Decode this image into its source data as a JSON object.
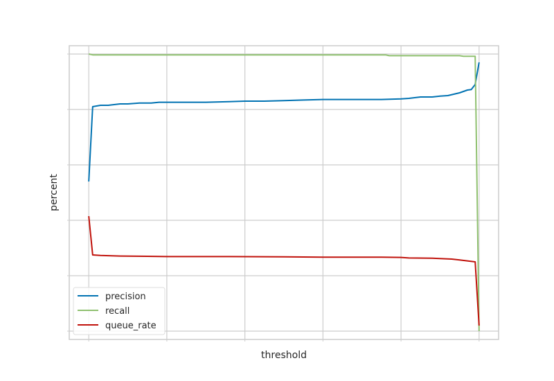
{
  "chart_data": {
    "type": "line",
    "xlabel": "threshold",
    "ylabel": "percent",
    "xlim": [
      -0.05,
      1.05
    ],
    "ylim": [
      -0.03,
      1.03
    ],
    "grid": true,
    "show_tick_labels": false,
    "legend_position": "lower-left",
    "series": [
      {
        "name": "precision",
        "color": "#0072b2",
        "x": [
          0.0,
          0.01,
          0.03,
          0.05,
          0.08,
          0.1,
          0.13,
          0.16,
          0.18,
          0.2,
          0.3,
          0.36,
          0.4,
          0.45,
          0.5,
          0.55,
          0.6,
          0.7,
          0.75,
          0.8,
          0.82,
          0.85,
          0.88,
          0.9,
          0.92,
          0.95,
          0.97,
          0.98,
          0.99,
          1.0
        ],
        "y": [
          0.54,
          0.81,
          0.815,
          0.815,
          0.82,
          0.82,
          0.823,
          0.823,
          0.826,
          0.826,
          0.826,
          0.828,
          0.83,
          0.83,
          0.832,
          0.834,
          0.836,
          0.836,
          0.836,
          0.838,
          0.84,
          0.845,
          0.845,
          0.848,
          0.85,
          0.86,
          0.87,
          0.872,
          0.89,
          0.97
        ]
      },
      {
        "name": "recall",
        "color": "#8fc06f",
        "x": [
          0.0,
          0.01,
          0.3,
          0.6,
          0.76,
          0.77,
          0.95,
          0.96,
          0.99,
          1.0
        ],
        "y": [
          1.0,
          0.997,
          0.997,
          0.997,
          0.997,
          0.994,
          0.994,
          0.992,
          0.992,
          0.0
        ]
      },
      {
        "name": "queue_rate",
        "color": "#c0110a",
        "x": [
          0.0,
          0.01,
          0.03,
          0.08,
          0.15,
          0.2,
          0.36,
          0.5,
          0.6,
          0.75,
          0.8,
          0.82,
          0.88,
          0.9,
          0.93,
          0.95,
          0.99,
          1.0
        ],
        "y": [
          0.415,
          0.275,
          0.273,
          0.271,
          0.27,
          0.269,
          0.269,
          0.268,
          0.267,
          0.267,
          0.266,
          0.264,
          0.263,
          0.262,
          0.26,
          0.257,
          0.25,
          0.02
        ]
      }
    ]
  }
}
